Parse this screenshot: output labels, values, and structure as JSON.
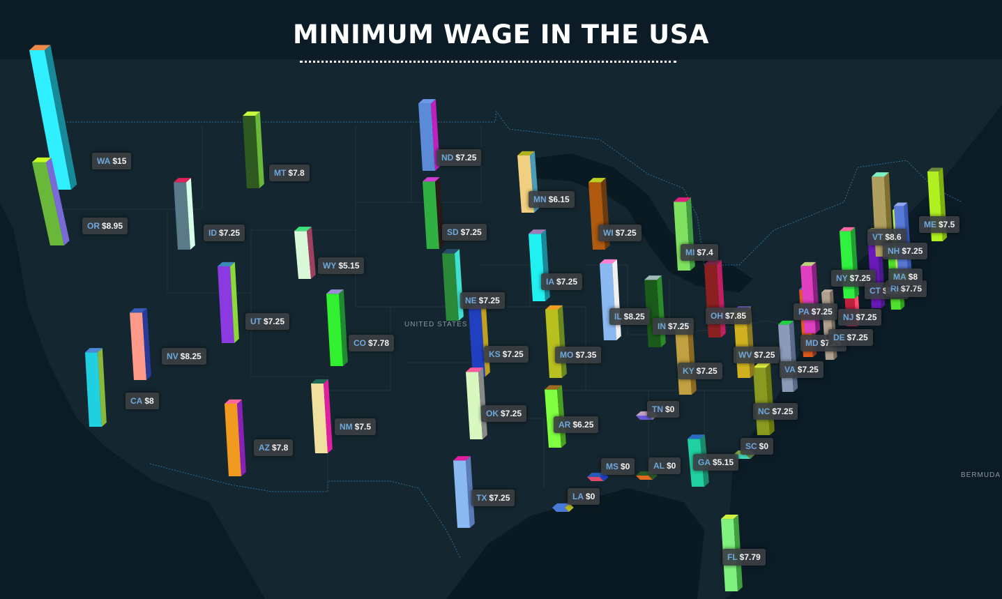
{
  "title": "MINIMUM WAGE IN THE USA",
  "map_labels": {
    "country": "UNITED STATES",
    "bermuda": "BERMUDA"
  },
  "colors": {
    "background": "#0b1c26",
    "land": "#14262f",
    "water": "#0a1a22",
    "border": "#2e6f9a",
    "label_abbr": "#6fa8dc",
    "label_value": "#f2f2f2"
  },
  "max_wage": 15,
  "states": [
    {
      "abbr": "WA",
      "wage": "$15",
      "value": 15,
      "colors": [
        "#30f0ff",
        "#178a99",
        "#f08a4a"
      ]
    },
    {
      "abbr": "OR",
      "wage": "$8.95",
      "value": 8.95,
      "colors": [
        "#6ab83a",
        "#7a6ad8",
        "#c8ff20"
      ]
    },
    {
      "abbr": "ID",
      "wage": "$7.25",
      "value": 7.25,
      "colors": [
        "#5a7a88",
        "#d8ffe8",
        "#e0205a"
      ]
    },
    {
      "abbr": "MT",
      "wage": "$7.8",
      "value": 7.8,
      "colors": [
        "#2e5a22",
        "#6ab83a",
        "#c8ff40"
      ]
    },
    {
      "abbr": "WY",
      "wage": "$5.15",
      "value": 5.15,
      "colors": [
        "#d8f8d8",
        "#a04060",
        "#40e080"
      ]
    },
    {
      "abbr": "NV",
      "wage": "$8.25",
      "value": 8.25,
      "colors": [
        "#8a3ae0",
        "#8ad83a",
        "#3a8ab8"
      ]
    },
    {
      "abbr": "UT",
      "wage": "$7.25",
      "value": 7.25,
      "colors": [
        "#ff9a8a",
        "#2a3a9a",
        "#3a5ab8"
      ]
    },
    {
      "abbr": "CA",
      "wage": "$8",
      "value": 8,
      "colors": [
        "#20d0e0",
        "#8ab83a",
        "#4a8ad8"
      ]
    },
    {
      "abbr": "AZ",
      "wage": "$7.8",
      "value": 7.8,
      "colors": [
        "#f09a20",
        "#8a20b8",
        "#ff6a9a"
      ]
    },
    {
      "abbr": "CO",
      "wage": "$7.78",
      "value": 7.78,
      "colors": [
        "#30f030",
        "#208a30",
        "#9a8ad8"
      ]
    },
    {
      "abbr": "NM",
      "wage": "$7.5",
      "value": 7.5,
      "colors": [
        "#f0e0a0",
        "#e020a0",
        "#206a5a"
      ]
    },
    {
      "abbr": "ND",
      "wage": "$7.25",
      "value": 7.25,
      "colors": [
        "#5a8ad8",
        "#c020c0",
        "#6a9ae8"
      ]
    },
    {
      "abbr": "SD",
      "wage": "$7.25",
      "value": 7.25,
      "colors": [
        "#30b040",
        "#2a1a1a",
        "#d040d0"
      ]
    },
    {
      "abbr": "NE",
      "wage": "$7.25",
      "value": 7.25,
      "colors": [
        "#2a8a3a",
        "#40e0d0",
        "#2a4a6a"
      ]
    },
    {
      "abbr": "KS",
      "wage": "$7.25",
      "value": 7.25,
      "colors": [
        "#2040c0",
        "#c0a020",
        "#6a4ab8"
      ]
    },
    {
      "abbr": "OK",
      "wage": "$7.25",
      "value": 7.25,
      "colors": [
        "#d8f8c0",
        "#8a8a8a",
        "#ff5a9a"
      ]
    },
    {
      "abbr": "TX",
      "wage": "$7.25",
      "value": 7.25,
      "colors": [
        "#8ab8f0",
        "#5a7ab8",
        "#e020a0"
      ]
    },
    {
      "abbr": "MN",
      "wage": "$6.15",
      "value": 6.15,
      "colors": [
        "#f0d080",
        "#4a9ab8",
        "#b0b020"
      ]
    },
    {
      "abbr": "IA",
      "wage": "$7.25",
      "value": 7.25,
      "colors": [
        "#20f0f0",
        "#1a8a9a",
        "#a07ab8"
      ]
    },
    {
      "abbr": "MO",
      "wage": "$7.35",
      "value": 7.35,
      "colors": [
        "#b8c020",
        "#6a8a20",
        "#f0a020"
      ]
    },
    {
      "abbr": "AR",
      "wage": "$6.25",
      "value": 6.25,
      "colors": [
        "#80ff40",
        "#4aa020",
        "#a06a20"
      ]
    },
    {
      "abbr": "LA",
      "wage": "$0",
      "value": 0,
      "colors": [
        "#4a7ad8",
        "#b8b820",
        "#4a7ad8"
      ]
    },
    {
      "abbr": "WI",
      "wage": "$7.25",
      "value": 7.25,
      "colors": [
        "#b05a10",
        "#6a3a10",
        "#c0d020"
      ]
    },
    {
      "abbr": "IL",
      "wage": "$8.25",
      "value": 8.25,
      "colors": [
        "#8ab8f0",
        "#f0f0f0",
        "#ff80d0"
      ]
    },
    {
      "abbr": "MI",
      "wage": "$7.4",
      "value": 7.4,
      "colors": [
        "#80e060",
        "#40a040",
        "#e0207a"
      ]
    },
    {
      "abbr": "IN",
      "wage": "$7.25",
      "value": 7.25,
      "colors": [
        "#1a5a1a",
        "#2a8a2a",
        "#a0b8b8"
      ]
    },
    {
      "abbr": "OH",
      "wage": "$7.85",
      "value": 7.85,
      "colors": [
        "#8a2020",
        "#c02060",
        "#7a2a4a"
      ]
    },
    {
      "abbr": "KY",
      "wage": "$7.25",
      "value": 7.25,
      "colors": [
        "#c0a040",
        "#8a6a20",
        "#40b8c0"
      ]
    },
    {
      "abbr": "TN",
      "wage": "$0",
      "value": 0,
      "colors": [
        "#6a5ad8",
        "#b08ab8",
        "#c0a0c0"
      ]
    },
    {
      "abbr": "MS",
      "wage": "$0",
      "value": 0,
      "colors": [
        "#e04a6a",
        "#2040c0",
        "#2a5ab8"
      ]
    },
    {
      "abbr": "AL",
      "wage": "$0",
      "value": 0,
      "colors": [
        "#e06a20",
        "#2a5a2a",
        "#2a5a2a"
      ]
    },
    {
      "abbr": "GA",
      "wage": "$5.15",
      "value": 5.15,
      "colors": [
        "#20d0a0",
        "#1a8a6a",
        "#2a6ac0"
      ]
    },
    {
      "abbr": "FL",
      "wage": "$7.79",
      "value": 7.79,
      "colors": [
        "#80f080",
        "#40a040",
        "#d0f040"
      ]
    },
    {
      "abbr": "SC",
      "wage": "$0",
      "value": 0,
      "colors": [
        "#40e0c0",
        "#6a8a4a",
        "#8ab850"
      ]
    },
    {
      "abbr": "NC",
      "wage": "$7.25",
      "value": 7.25,
      "colors": [
        "#8a9a20",
        "#6a7a10",
        "#e0f040"
      ]
    },
    {
      "abbr": "WV",
      "wage": "$7.25",
      "value": 7.25,
      "colors": [
        "#d0b020",
        "#8a7a20",
        "#7a6ad8"
      ]
    },
    {
      "abbr": "VA",
      "wage": "$7.25",
      "value": 7.25,
      "colors": [
        "#8a9ab8",
        "#5a6a8a",
        "#20d040"
      ]
    },
    {
      "abbr": "MD",
      "wage": "$7.25",
      "value": 7.25,
      "colors": [
        "#e05a20",
        "#8a3a20",
        "#4a6ad8"
      ]
    },
    {
      "abbr": "DE",
      "wage": "$7.25",
      "value": 7.25,
      "colors": [
        "#b0a090",
        "#7a6a5a",
        "#c0b0a0"
      ]
    },
    {
      "abbr": "PA",
      "wage": "$7.25",
      "value": 7.25,
      "colors": [
        "#e040c0",
        "#8a2080",
        "#c0d080"
      ]
    },
    {
      "abbr": "NJ",
      "wage": "$7.25",
      "value": 7.25,
      "colors": [
        "#c02040",
        "#ff4a6a",
        "#e01a3a"
      ]
    },
    {
      "abbr": "NY",
      "wage": "$7.25",
      "value": 7.25,
      "colors": [
        "#30f040",
        "#20a030",
        "#ff6aa0"
      ]
    },
    {
      "abbr": "CT",
      "wage": "$8.25",
      "value": 8.25,
      "colors": [
        "#6a1ab8",
        "#4a1a8a",
        "#f0e040"
      ]
    },
    {
      "abbr": "RI",
      "wage": "$7.75",
      "value": 7.75,
      "colors": [
        "#50e030",
        "#30a020",
        "#2a8a3a"
      ]
    },
    {
      "abbr": "MA",
      "wage": "$8",
      "value": 8,
      "colors": [
        "#c0f040",
        "#8ab020",
        "#e0f060"
      ]
    },
    {
      "abbr": "VT",
      "wage": "$8.6",
      "value": 8.6,
      "colors": [
        "#b0a060",
        "#807030",
        "#80f0c0"
      ]
    },
    {
      "abbr": "NH",
      "wage": "$7.25",
      "value": 7.25,
      "colors": [
        "#5a7ad8",
        "#3a5ab8",
        "#90a8f0"
      ]
    },
    {
      "abbr": "ME",
      "wage": "$7.5",
      "value": 7.5,
      "colors": [
        "#b0f020",
        "#80b010",
        "#6a8a3a"
      ]
    }
  ]
}
